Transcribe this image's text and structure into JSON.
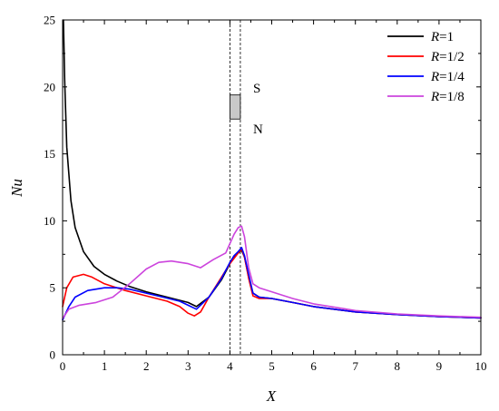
{
  "chart_data": {
    "type": "line",
    "xlabel": "X",
    "ylabel": "Nu",
    "xlim": [
      0,
      10
    ],
    "ylim": [
      0,
      25
    ],
    "xticks": [
      "0",
      "1",
      "2",
      "3",
      "4",
      "5",
      "6",
      "7",
      "8",
      "9",
      "10"
    ],
    "yticks": [
      "0",
      "5",
      "10",
      "15",
      "20",
      "25"
    ],
    "grid": false,
    "legend_position": "top-right",
    "annotations": {
      "south_label": "S",
      "north_label": "N",
      "dashed_lines_x": [
        4.0,
        4.25
      ],
      "block": {
        "x": [
          4.0,
          4.25
        ],
        "y": [
          17.6,
          19.4
        ],
        "color": "#c8c8c8"
      }
    },
    "series": [
      {
        "name": "R=1",
        "name_var": "R",
        "name_val": "=1",
        "color": "#000000",
        "x": [
          0.02,
          0.05,
          0.1,
          0.2,
          0.3,
          0.5,
          0.75,
          1.0,
          1.3,
          1.6,
          2.0,
          2.5,
          3.0,
          3.2,
          3.5,
          3.8,
          4.0,
          4.1,
          4.2,
          4.28,
          4.35,
          4.45,
          4.55,
          4.7,
          5.0,
          5.5,
          6.0,
          7.0,
          8.0,
          9.0,
          10.0
        ],
        "y": [
          25.0,
          20.5,
          15.5,
          11.5,
          9.5,
          7.7,
          6.6,
          6.0,
          5.5,
          5.1,
          4.7,
          4.3,
          3.9,
          3.6,
          4.3,
          5.6,
          6.8,
          7.3,
          7.6,
          7.8,
          7.3,
          5.8,
          4.6,
          4.3,
          4.2,
          3.9,
          3.6,
          3.2,
          3.0,
          2.85,
          2.75
        ]
      },
      {
        "name": "R=1/2",
        "name_var": "R",
        "name_val": "=1/2",
        "color": "#ff0000",
        "x": [
          0.0,
          0.1,
          0.25,
          0.5,
          0.7,
          1.0,
          1.5,
          2.0,
          2.5,
          2.8,
          3.0,
          3.15,
          3.3,
          3.5,
          3.8,
          4.0,
          4.1,
          4.2,
          4.28,
          4.35,
          4.45,
          4.55,
          4.7,
          5.0,
          5.5,
          6.0,
          7.0,
          8.0,
          9.0,
          10.0
        ],
        "y": [
          3.6,
          5.0,
          5.8,
          6.0,
          5.8,
          5.3,
          4.8,
          4.4,
          4.0,
          3.6,
          3.1,
          2.9,
          3.2,
          4.3,
          5.8,
          6.8,
          7.2,
          7.6,
          7.9,
          7.3,
          5.7,
          4.4,
          4.2,
          4.2,
          3.9,
          3.6,
          3.2,
          3.0,
          2.85,
          2.75
        ]
      },
      {
        "name": "R=1/4",
        "name_var": "R",
        "name_val": "=1/4",
        "color": "#0000ff",
        "x": [
          0.0,
          0.15,
          0.3,
          0.6,
          1.0,
          1.3,
          1.6,
          2.0,
          2.4,
          2.8,
          3.0,
          3.2,
          3.5,
          3.8,
          4.0,
          4.1,
          4.2,
          4.28,
          4.35,
          4.45,
          4.55,
          4.7,
          5.0,
          5.5,
          6.0,
          7.0,
          8.0,
          9.0,
          10.0
        ],
        "y": [
          2.6,
          3.6,
          4.3,
          4.8,
          5.0,
          5.0,
          4.9,
          4.6,
          4.3,
          4.0,
          3.7,
          3.4,
          4.3,
          5.7,
          6.9,
          7.4,
          7.7,
          8.0,
          7.4,
          6.0,
          4.6,
          4.3,
          4.2,
          3.9,
          3.6,
          3.2,
          3.0,
          2.85,
          2.75
        ]
      },
      {
        "name": "R=1/8",
        "name_var": "R",
        "name_val": "=1/8",
        "color": "#cc44dd",
        "x": [
          0.0,
          0.15,
          0.4,
          0.8,
          1.2,
          1.6,
          2.0,
          2.3,
          2.6,
          3.0,
          3.3,
          3.6,
          3.9,
          4.0,
          4.1,
          4.2,
          4.28,
          4.35,
          4.45,
          4.55,
          4.7,
          5.0,
          5.5,
          6.0,
          7.0,
          8.0,
          9.0,
          10.0
        ],
        "y": [
          2.7,
          3.4,
          3.7,
          3.9,
          4.3,
          5.3,
          6.4,
          6.9,
          7.0,
          6.8,
          6.5,
          7.1,
          7.6,
          8.3,
          9.0,
          9.5,
          9.6,
          8.8,
          6.5,
          5.3,
          5.0,
          4.7,
          4.2,
          3.8,
          3.3,
          3.05,
          2.9,
          2.8
        ]
      }
    ]
  }
}
